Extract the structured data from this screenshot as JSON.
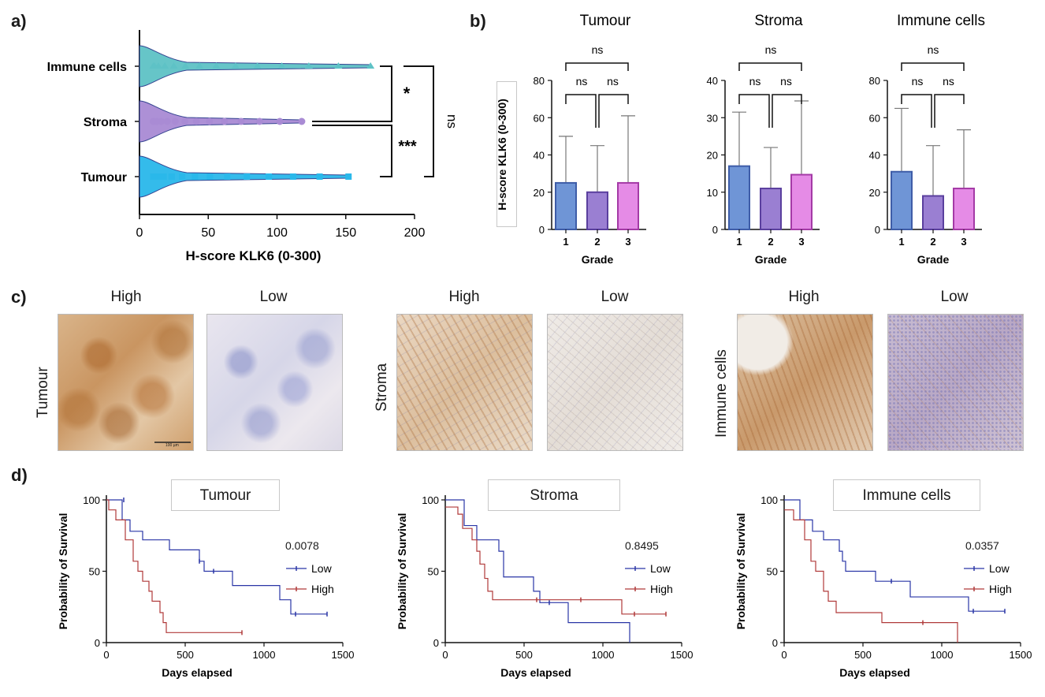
{
  "panels": {
    "a": "a)",
    "b": "b)",
    "c": "c)",
    "d": "d)"
  },
  "panel_a": {
    "categories": [
      "Immune cells",
      "Stroma",
      "Tumour"
    ],
    "xlabel": "H-score KLK6 (0-300)",
    "xticks": [
      "0",
      "50",
      "100",
      "150",
      "200"
    ],
    "brackets": [
      "*",
      "***",
      "ns"
    ],
    "colors": {
      "Immune cells": "#5ec2c6",
      "Stroma": "#a98bd4",
      "Tumour": "#2ab8ea"
    }
  },
  "panel_b": {
    "ylabel": "H-score KLK6 (0-300)",
    "xlabel": "Grade",
    "bar_colors": [
      "#6f95d6",
      "#9a7fd2",
      "#e58be6"
    ]
  },
  "panel_c": {
    "rows": [
      "Tumour",
      "Stroma",
      "Immune cells"
    ],
    "columns": [
      "High",
      "Low"
    ],
    "scalebar": "100 µm"
  },
  "panel_d": {
    "ylabel": "Probability of Survival",
    "xlabel": "Days elapsed",
    "legend": [
      "Low",
      "High"
    ],
    "colors": {
      "Low": "#2a36a6",
      "High": "#b03a3a"
    }
  },
  "chart_data": [
    {
      "type": "scatter",
      "panel": "a",
      "categories": [
        "Immune cells",
        "Stroma",
        "Tumour"
      ],
      "xlabel": "H-score KLK6 (0-300)",
      "xlim": [
        0,
        200
      ],
      "xticks": [
        0,
        50,
        100,
        150,
        200
      ],
      "max_values": {
        "Immune cells": 168,
        "Stroma": 118,
        "Tumour": 152
      },
      "comparisons": [
        {
          "pair": [
            "Immune cells",
            "Stroma"
          ],
          "label": "*"
        },
        {
          "pair": [
            "Stroma",
            "Tumour"
          ],
          "label": "***"
        },
        {
          "pair": [
            "Immune cells",
            "Tumour"
          ],
          "label": "ns"
        }
      ]
    },
    {
      "type": "bar",
      "panel": "b",
      "title": "Tumour",
      "categories": [
        "1",
        "2",
        "3"
      ],
      "values": [
        25,
        20,
        25
      ],
      "errors": [
        50,
        45,
        61
      ],
      "ylim": [
        0,
        80
      ],
      "yticks": [
        0,
        20,
        40,
        60,
        80
      ],
      "xlabel": "Grade",
      "ylabel": "H-score KLK6 (0-300)",
      "comparisons": [
        {
          "pair": [
            "1",
            "2"
          ],
          "label": "ns"
        },
        {
          "pair": [
            "2",
            "3"
          ],
          "label": "ns"
        },
        {
          "pair": [
            "1",
            "3"
          ],
          "label": "ns"
        }
      ]
    },
    {
      "type": "bar",
      "panel": "b",
      "title": "Stroma",
      "categories": [
        "1",
        "2",
        "3"
      ],
      "values": [
        17,
        11,
        14.7
      ],
      "errors": [
        31.5,
        22,
        34.5
      ],
      "ylim": [
        0,
        40
      ],
      "yticks": [
        0,
        10,
        20,
        30,
        40
      ],
      "xlabel": "Grade",
      "comparisons": [
        {
          "pair": [
            "1",
            "2"
          ],
          "label": "ns"
        },
        {
          "pair": [
            "2",
            "3"
          ],
          "label": "ns"
        },
        {
          "pair": [
            "1",
            "3"
          ],
          "label": "ns"
        }
      ]
    },
    {
      "type": "bar",
      "panel": "b",
      "title": "Immune cells",
      "categories": [
        "1",
        "2",
        "3"
      ],
      "values": [
        31,
        18,
        22
      ],
      "errors": [
        65,
        45,
        53.5
      ],
      "ylim": [
        0,
        80
      ],
      "yticks": [
        0,
        20,
        40,
        60,
        80
      ],
      "xlabel": "Grade",
      "comparisons": [
        {
          "pair": [
            "1",
            "2"
          ],
          "label": "ns"
        },
        {
          "pair": [
            "2",
            "3"
          ],
          "label": "ns"
        },
        {
          "pair": [
            "1",
            "3"
          ],
          "label": "ns"
        }
      ]
    },
    {
      "type": "line",
      "panel": "d",
      "title": "Tumour",
      "pvalue": "0.0078",
      "xlabel": "Days elapsed",
      "ylabel": "Probability of Survival",
      "xlim": [
        0,
        1500
      ],
      "ylim": [
        0,
        100
      ],
      "xticks": [
        0,
        500,
        1000,
        1500
      ],
      "yticks": [
        0,
        50,
        100
      ],
      "series": [
        {
          "name": "Low",
          "steps": [
            [
              0,
              100
            ],
            [
              100,
              86
            ],
            [
              150,
              78
            ],
            [
              230,
              72
            ],
            [
              400,
              65
            ],
            [
              590,
              57
            ],
            [
              620,
              50
            ],
            [
              800,
              40
            ],
            [
              1100,
              30
            ],
            [
              1170,
              20
            ],
            [
              1400,
              20
            ]
          ],
          "censors": [
            [
              110,
              100
            ],
            [
              590,
              57
            ],
            [
              680,
              50
            ],
            [
              1200,
              20
            ],
            [
              1400,
              20
            ]
          ]
        },
        {
          "name": "High",
          "steps": [
            [
              0,
              100
            ],
            [
              15,
              93
            ],
            [
              60,
              86
            ],
            [
              120,
              72
            ],
            [
              170,
              57
            ],
            [
              200,
              50
            ],
            [
              230,
              43
            ],
            [
              270,
              36
            ],
            [
              290,
              29
            ],
            [
              340,
              21
            ],
            [
              360,
              14
            ],
            [
              380,
              7
            ],
            [
              860,
              7
            ]
          ],
          "censors": [
            [
              860,
              7
            ]
          ]
        }
      ]
    },
    {
      "type": "line",
      "panel": "d",
      "title": "Stroma",
      "pvalue": "0.8495",
      "xlabel": "Days elapsed",
      "ylabel": "Probability of Survival",
      "xlim": [
        0,
        1500
      ],
      "ylim": [
        0,
        100
      ],
      "xticks": [
        0,
        500,
        1000,
        1500
      ],
      "yticks": [
        0,
        50,
        100
      ],
      "series": [
        {
          "name": "Low",
          "steps": [
            [
              0,
              100
            ],
            [
              120,
              82
            ],
            [
              200,
              72
            ],
            [
              340,
              64
            ],
            [
              370,
              46
            ],
            [
              560,
              36
            ],
            [
              600,
              28
            ],
            [
              780,
              14
            ],
            [
              1170,
              0
            ]
          ],
          "censors": [
            [
              660,
              28
            ]
          ]
        },
        {
          "name": "High",
          "steps": [
            [
              0,
              95
            ],
            [
              80,
              90
            ],
            [
              110,
              80
            ],
            [
              170,
              72
            ],
            [
              200,
              64
            ],
            [
              220,
              55
            ],
            [
              250,
              45
            ],
            [
              270,
              36
            ],
            [
              300,
              30
            ],
            [
              1100,
              30
            ],
            [
              1120,
              20
            ],
            [
              1400,
              20
            ]
          ],
          "censors": [
            [
              580,
              30
            ],
            [
              860,
              30
            ],
            [
              1200,
              20
            ],
            [
              1400,
              20
            ]
          ]
        }
      ]
    },
    {
      "type": "line",
      "panel": "d",
      "title": "Immune cells",
      "pvalue": "0.0357",
      "xlabel": "Days elapsed",
      "ylabel": "Probability of Survival",
      "xlim": [
        0,
        1500
      ],
      "ylim": [
        0,
        100
      ],
      "xticks": [
        0,
        500,
        1000,
        1500
      ],
      "yticks": [
        0,
        50,
        100
      ],
      "series": [
        {
          "name": "Low",
          "steps": [
            [
              0,
              100
            ],
            [
              100,
              86
            ],
            [
              180,
              78
            ],
            [
              250,
              72
            ],
            [
              350,
              64
            ],
            [
              370,
              57
            ],
            [
              390,
              50
            ],
            [
              580,
              43
            ],
            [
              800,
              32
            ],
            [
              1170,
              22
            ],
            [
              1400,
              22
            ]
          ],
          "censors": [
            [
              680,
              43
            ],
            [
              1200,
              22
            ],
            [
              1400,
              22
            ]
          ]
        },
        {
          "name": "High",
          "steps": [
            [
              0,
              93
            ],
            [
              60,
              86
            ],
            [
              130,
              72
            ],
            [
              170,
              57
            ],
            [
              200,
              50
            ],
            [
              250,
              36
            ],
            [
              280,
              29
            ],
            [
              330,
              21
            ],
            [
              620,
              14
            ],
            [
              1100,
              0
            ]
          ],
          "censors": [
            [
              880,
              14
            ]
          ]
        }
      ]
    }
  ]
}
